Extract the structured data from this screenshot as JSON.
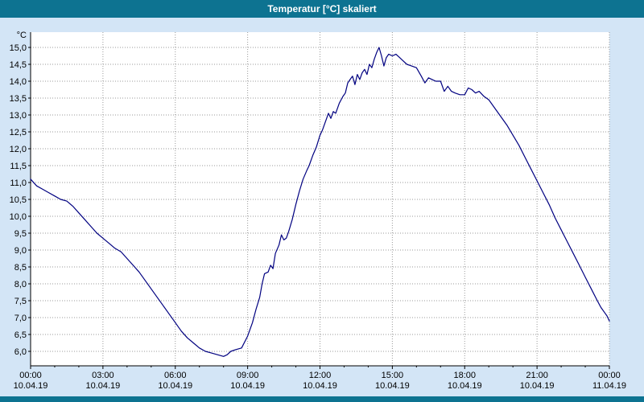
{
  "window": {
    "title": "Temperatur [°C] skaliert"
  },
  "colors": {
    "titlebar": "#0d7391",
    "title_text": "#ffffff",
    "background": "#d3e5f6",
    "plot_background": "#ffffff",
    "line": "#000080",
    "grid": "#999999",
    "axis": "#000000",
    "tick_text": "#000000"
  },
  "chart_data": {
    "type": "line",
    "title": "Temperatur [°C] skaliert",
    "ylabel": "°C",
    "xlabel": "",
    "grid": true,
    "legend": "none",
    "ylim": [
      6.0,
      15.0
    ],
    "y_tick_step": 0.5,
    "y_ticks": [
      "15,0",
      "14,5",
      "14,0",
      "13,5",
      "13,0",
      "12,5",
      "12,0",
      "11,5",
      "11,0",
      "10,5",
      "10,0",
      "9,5",
      "9,0",
      "8,5",
      "8,0",
      "7,5",
      "7,0",
      "6,5",
      "6,0"
    ],
    "xlim_hours": [
      0,
      24
    ],
    "x_tick_interval_hours": 3,
    "x_ticks": [
      {
        "time": "00:00",
        "date": "10.04.19"
      },
      {
        "time": "03:00",
        "date": "10.04.19"
      },
      {
        "time": "06:00",
        "date": "10.04.19"
      },
      {
        "time": "09:00",
        "date": "10.04.19"
      },
      {
        "time": "12:00",
        "date": "10.04.19"
      },
      {
        "time": "15:00",
        "date": "10.04.19"
      },
      {
        "time": "18:00",
        "date": "10.04.19"
      },
      {
        "time": "21:00",
        "date": "10.04.19"
      },
      {
        "time": "00:00",
        "date": "11.04.19"
      }
    ],
    "series": [
      {
        "name": "Temperatur",
        "color": "#000080",
        "points": [
          [
            0,
            11.1
          ],
          [
            0.25,
            10.9
          ],
          [
            0.5,
            10.8
          ],
          [
            0.75,
            10.7
          ],
          [
            1,
            10.6
          ],
          [
            1.25,
            10.5
          ],
          [
            1.5,
            10.45
          ],
          [
            1.75,
            10.3
          ],
          [
            2,
            10.1
          ],
          [
            2.25,
            9.9
          ],
          [
            2.5,
            9.7
          ],
          [
            2.75,
            9.5
          ],
          [
            3,
            9.35
          ],
          [
            3.25,
            9.2
          ],
          [
            3.5,
            9.05
          ],
          [
            3.75,
            8.95
          ],
          [
            4,
            8.75
          ],
          [
            4.25,
            8.55
          ],
          [
            4.5,
            8.35
          ],
          [
            4.75,
            8.1
          ],
          [
            5,
            7.85
          ],
          [
            5.25,
            7.6
          ],
          [
            5.5,
            7.35
          ],
          [
            5.75,
            7.1
          ],
          [
            6,
            6.85
          ],
          [
            6.25,
            6.6
          ],
          [
            6.5,
            6.4
          ],
          [
            6.75,
            6.25
          ],
          [
            7,
            6.1
          ],
          [
            7.25,
            6.0
          ],
          [
            7.5,
            5.95
          ],
          [
            7.75,
            5.9
          ],
          [
            8,
            5.85
          ],
          [
            8.15,
            5.9
          ],
          [
            8.3,
            6.0
          ],
          [
            8.5,
            6.05
          ],
          [
            8.75,
            6.1
          ],
          [
            9,
            6.45
          ],
          [
            9.2,
            6.85
          ],
          [
            9.35,
            7.25
          ],
          [
            9.5,
            7.6
          ],
          [
            9.6,
            8.0
          ],
          [
            9.7,
            8.3
          ],
          [
            9.85,
            8.35
          ],
          [
            9.95,
            8.55
          ],
          [
            10.05,
            8.45
          ],
          [
            10.15,
            8.9
          ],
          [
            10.3,
            9.15
          ],
          [
            10.4,
            9.45
          ],
          [
            10.5,
            9.3
          ],
          [
            10.6,
            9.35
          ],
          [
            10.7,
            9.55
          ],
          [
            10.85,
            9.9
          ],
          [
            11,
            10.35
          ],
          [
            11.15,
            10.75
          ],
          [
            11.3,
            11.1
          ],
          [
            11.45,
            11.35
          ],
          [
            11.55,
            11.5
          ],
          [
            11.7,
            11.8
          ],
          [
            11.85,
            12.05
          ],
          [
            12,
            12.4
          ],
          [
            12.1,
            12.55
          ],
          [
            12.25,
            12.85
          ],
          [
            12.35,
            13.05
          ],
          [
            12.45,
            12.9
          ],
          [
            12.55,
            13.1
          ],
          [
            12.65,
            13.05
          ],
          [
            12.8,
            13.35
          ],
          [
            12.95,
            13.55
          ],
          [
            13.05,
            13.65
          ],
          [
            13.15,
            13.95
          ],
          [
            13.25,
            14.05
          ],
          [
            13.35,
            14.15
          ],
          [
            13.45,
            13.9
          ],
          [
            13.55,
            14.2
          ],
          [
            13.65,
            14.05
          ],
          [
            13.75,
            14.25
          ],
          [
            13.85,
            14.35
          ],
          [
            13.95,
            14.2
          ],
          [
            14.05,
            14.5
          ],
          [
            14.15,
            14.4
          ],
          [
            14.25,
            14.65
          ],
          [
            14.35,
            14.85
          ],
          [
            14.45,
            15.0
          ],
          [
            14.55,
            14.75
          ],
          [
            14.65,
            14.45
          ],
          [
            14.75,
            14.7
          ],
          [
            14.85,
            14.8
          ],
          [
            15,
            14.75
          ],
          [
            15.15,
            14.8
          ],
          [
            15.3,
            14.7
          ],
          [
            15.45,
            14.6
          ],
          [
            15.6,
            14.5
          ],
          [
            15.8,
            14.45
          ],
          [
            16,
            14.4
          ],
          [
            16.2,
            14.15
          ],
          [
            16.35,
            13.95
          ],
          [
            16.5,
            14.1
          ],
          [
            16.65,
            14.05
          ],
          [
            16.8,
            14.0
          ],
          [
            17,
            14.0
          ],
          [
            17.15,
            13.7
          ],
          [
            17.3,
            13.85
          ],
          [
            17.45,
            13.7
          ],
          [
            17.6,
            13.65
          ],
          [
            17.8,
            13.6
          ],
          [
            18,
            13.6
          ],
          [
            18.15,
            13.8
          ],
          [
            18.3,
            13.75
          ],
          [
            18.45,
            13.65
          ],
          [
            18.6,
            13.7
          ],
          [
            18.8,
            13.55
          ],
          [
            19,
            13.45
          ],
          [
            19.25,
            13.2
          ],
          [
            19.5,
            12.95
          ],
          [
            19.75,
            12.7
          ],
          [
            20,
            12.4
          ],
          [
            20.25,
            12.1
          ],
          [
            20.5,
            11.75
          ],
          [
            20.75,
            11.4
          ],
          [
            21,
            11.05
          ],
          [
            21.25,
            10.7
          ],
          [
            21.5,
            10.35
          ],
          [
            21.75,
            9.95
          ],
          [
            22,
            9.6
          ],
          [
            22.25,
            9.25
          ],
          [
            22.5,
            8.9
          ],
          [
            22.75,
            8.55
          ],
          [
            23,
            8.2
          ],
          [
            23.25,
            7.85
          ],
          [
            23.5,
            7.5
          ],
          [
            23.65,
            7.3
          ],
          [
            23.8,
            7.15
          ],
          [
            23.9,
            7.05
          ],
          [
            24,
            6.9
          ]
        ]
      }
    ]
  }
}
